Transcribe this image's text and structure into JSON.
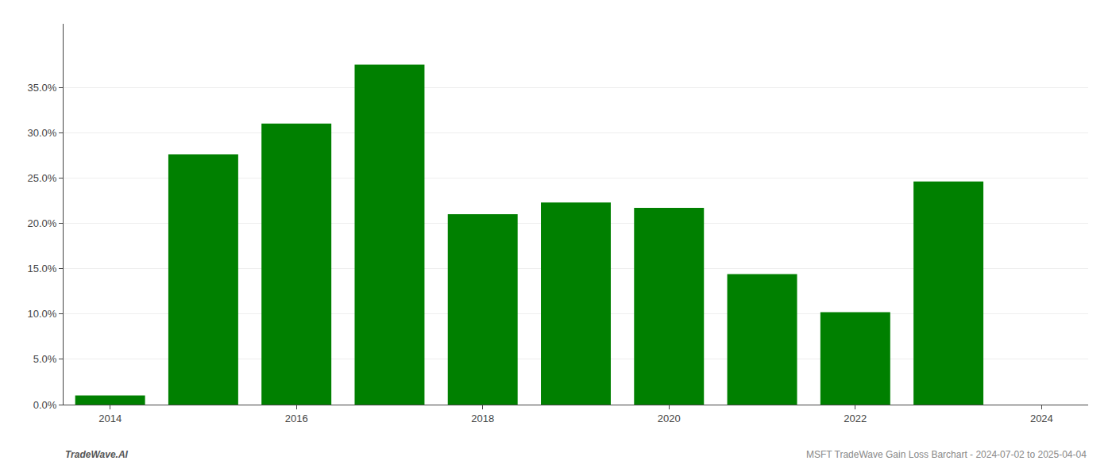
{
  "chart_data": {
    "type": "bar",
    "x": [
      2014,
      2015,
      2016,
      2017,
      2018,
      2019,
      2020,
      2021,
      2022,
      2023
    ],
    "values": [
      0.01,
      0.276,
      0.31,
      0.375,
      0.21,
      0.223,
      0.217,
      0.144,
      0.102,
      0.246
    ],
    "color": "#008000",
    "xlim": [
      2013.5,
      2024.5
    ],
    "xticks": [
      2014,
      2016,
      2018,
      2020,
      2022,
      2024
    ],
    "ylim": [
      0,
      0.42
    ],
    "yticks": [
      {
        "value": 0.0,
        "label": "0.0%"
      },
      {
        "value": 0.05,
        "label": "5.0%"
      },
      {
        "value": 0.1,
        "label": "10.0%"
      },
      {
        "value": 0.15,
        "label": "15.0%"
      },
      {
        "value": 0.2,
        "label": "20.0%"
      },
      {
        "value": 0.25,
        "label": "25.0%"
      },
      {
        "value": 0.3,
        "label": "30.0%"
      },
      {
        "value": 0.35,
        "label": "35.0%"
      }
    ],
    "grid": true,
    "annotations": [
      "TradeWave.AI",
      "MSFT TradeWave Gain Loss Barchart - 2024-07-02 to 2025-04-04"
    ]
  }
}
